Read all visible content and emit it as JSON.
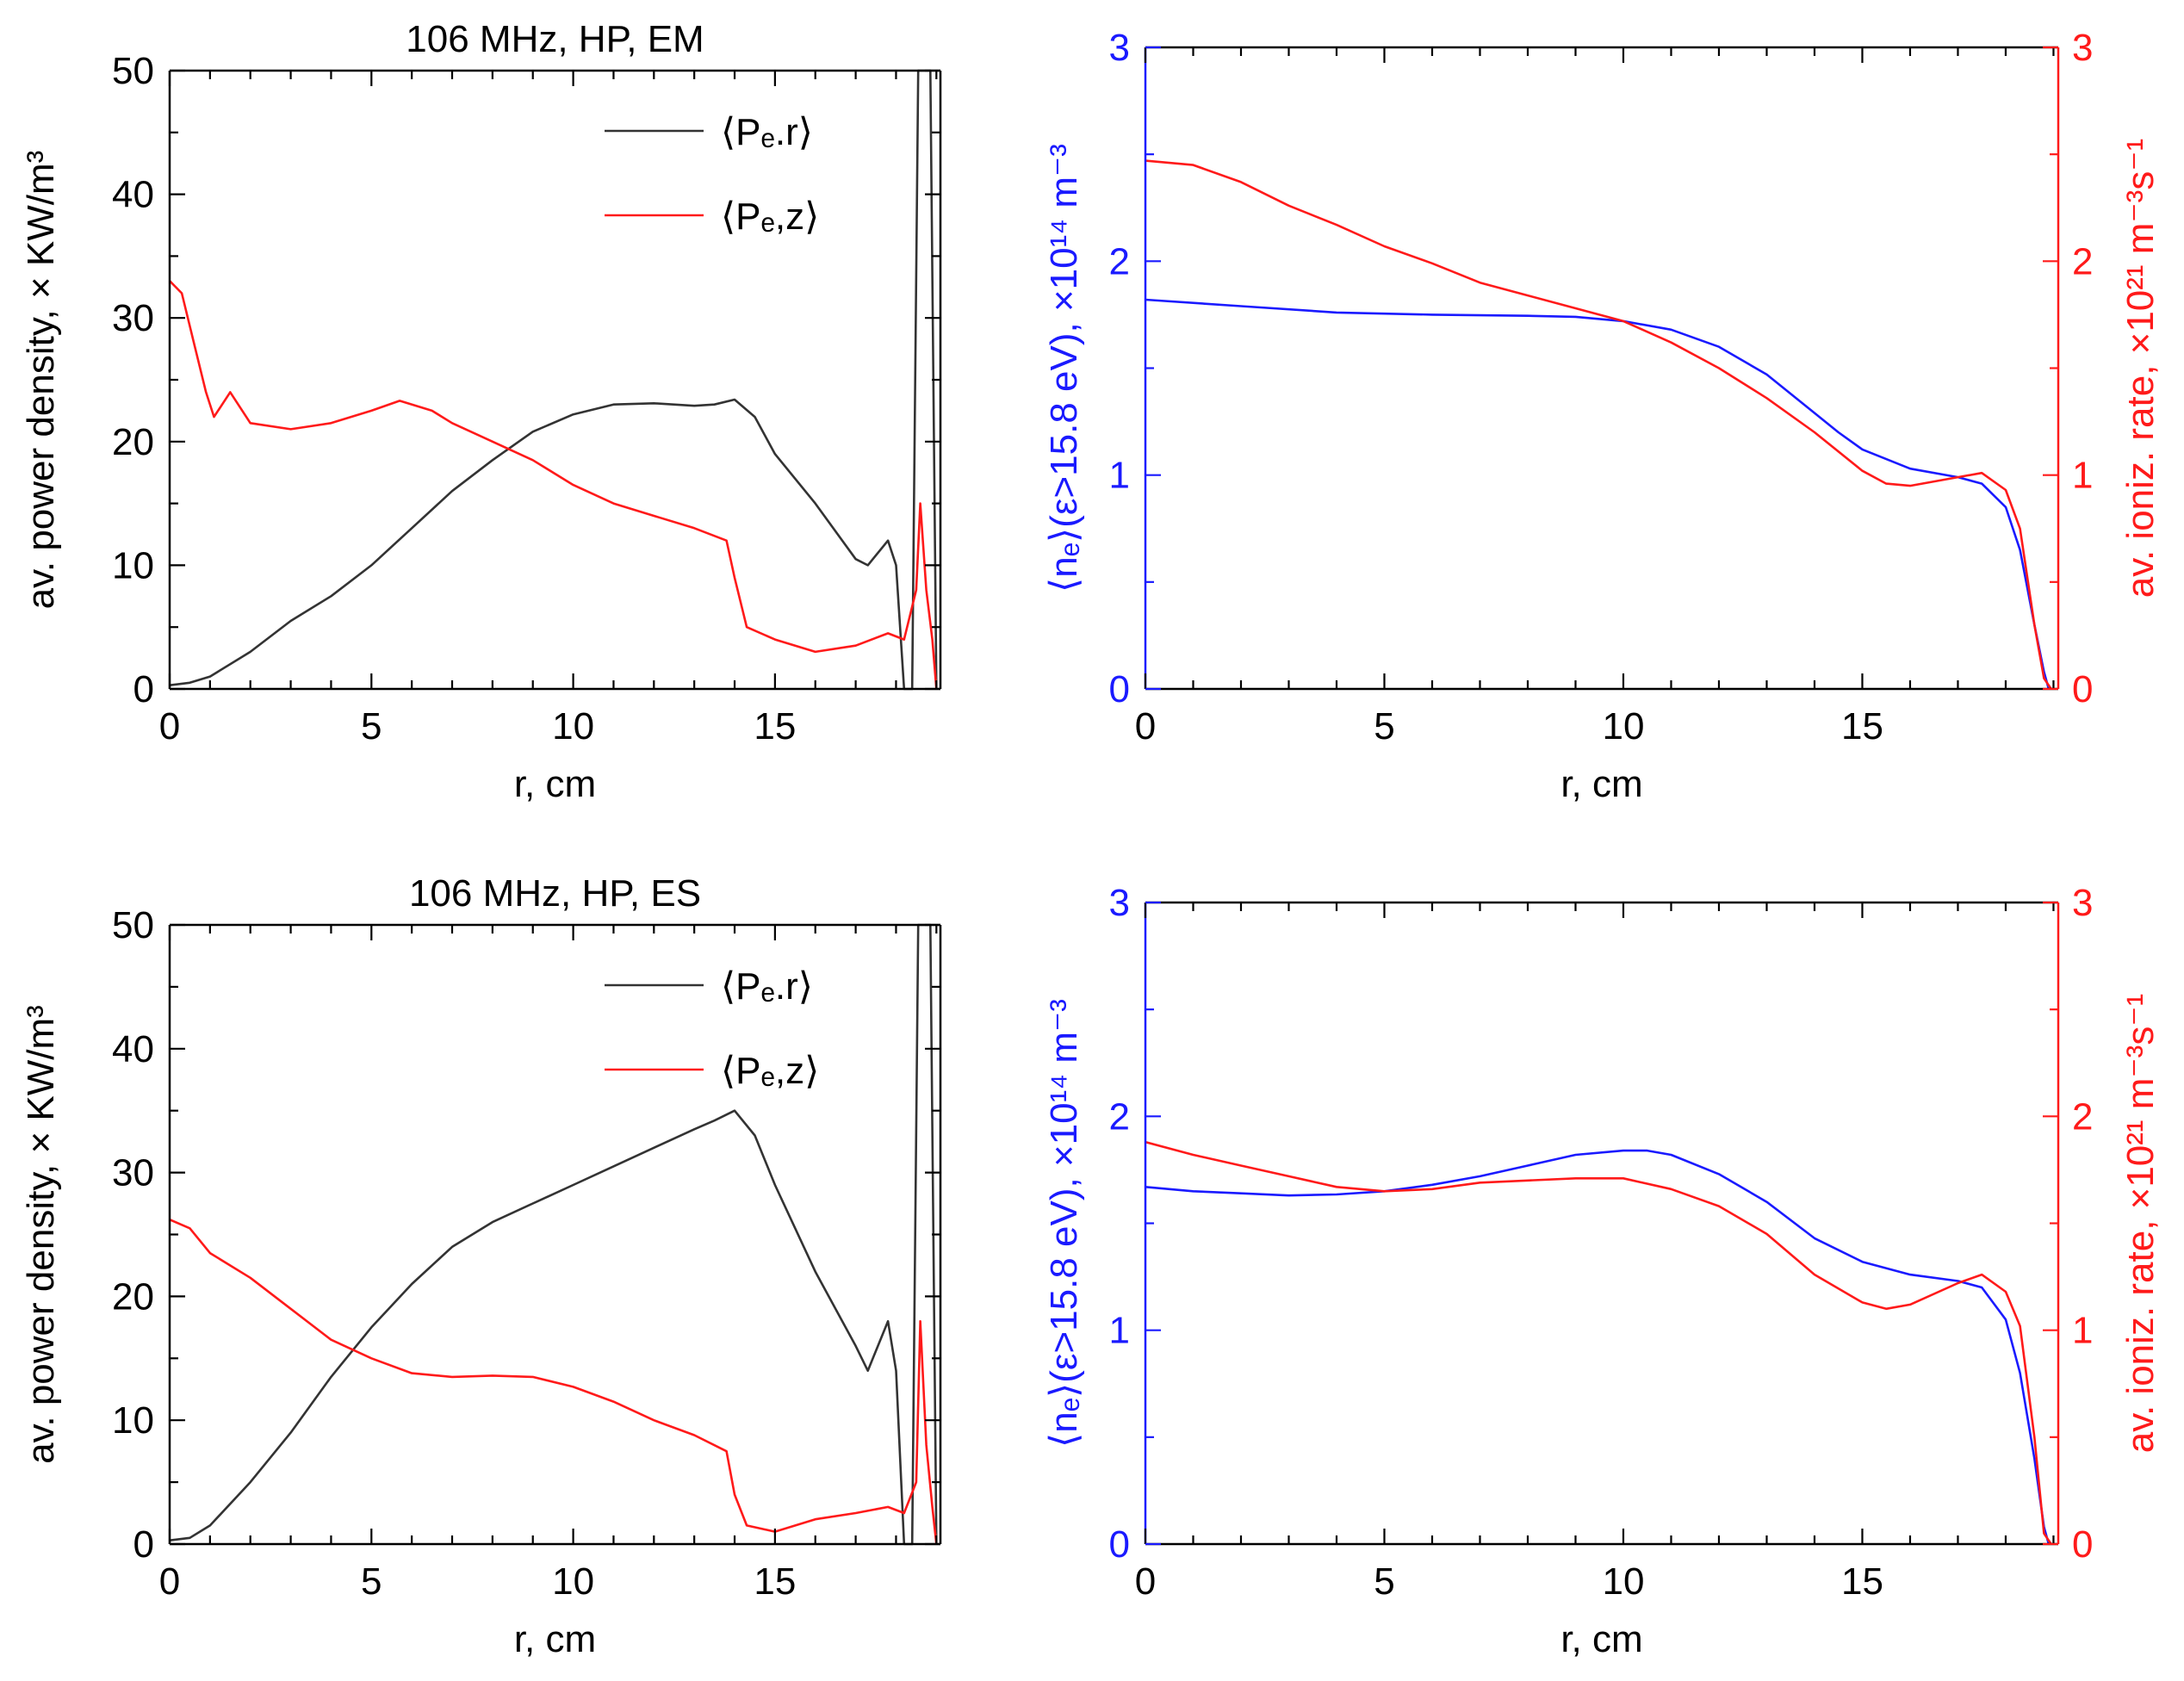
{
  "figure_colors": {
    "black": "#333333",
    "red": "#ff1a1a",
    "blue": "#1a1aff"
  },
  "chart_data": [
    {
      "type": "line",
      "panel": "top-left",
      "title": "106 MHz, HP, EM",
      "xlabel": "r, cm",
      "ylabel": "av. power density, × KW/m³",
      "xlim": [
        0,
        19.1
      ],
      "ylim": [
        0,
        50
      ],
      "xticks": [
        "0",
        "5",
        "10",
        "15"
      ],
      "yticks": [
        "0",
        "10",
        "20",
        "30",
        "40",
        "50"
      ],
      "legend": [
        "⟨Pₑ.r⟩",
        "⟨Pₑ,z⟩"
      ],
      "legend_position": "top-right",
      "series": [
        {
          "name": "⟨Pe.r⟩",
          "color": "#333333",
          "x": [
            0,
            0.5,
            1,
            2,
            3,
            4,
            5,
            6,
            7,
            8,
            9,
            10,
            11,
            12,
            13,
            13.5,
            14,
            14.5,
            15,
            16,
            17,
            17.3,
            17.8,
            18,
            18.2,
            18.4,
            18.55,
            18.7,
            18.85,
            19.0
          ],
          "y": [
            0.3,
            0.5,
            1,
            3,
            5.5,
            7.5,
            10,
            13,
            16,
            18.5,
            20.8,
            22.2,
            23,
            23.1,
            22.9,
            23,
            23.4,
            22,
            19,
            15,
            10.5,
            10,
            12,
            10,
            0,
            0,
            50,
            50,
            50,
            0
          ]
        },
        {
          "name": "⟨Pe,z⟩",
          "color": "#ff1a1a",
          "x": [
            0,
            0.3,
            0.6,
            0.9,
            1.1,
            1.5,
            2,
            3,
            4,
            5,
            5.7,
            6.5,
            7,
            8,
            9,
            10,
            11,
            12,
            13,
            13.8,
            14,
            14.3,
            15,
            16,
            17,
            17.8,
            18.2,
            18.5,
            18.6,
            18.75,
            18.9,
            19.0
          ],
          "y": [
            33,
            32,
            28,
            24,
            22,
            24,
            21.5,
            21,
            21.5,
            22.5,
            23.3,
            22.5,
            21.5,
            20,
            18.5,
            16.5,
            15,
            14,
            13,
            12,
            9,
            5,
            4,
            3,
            3.5,
            4.5,
            4,
            8,
            15,
            8,
            4,
            0
          ]
        }
      ]
    },
    {
      "type": "line",
      "panel": "top-right",
      "xlabel": "r, cm",
      "ylabel_left": "⟨nₑ⟩(ε>15.8 eV), ×10¹⁴ m⁻³",
      "ylabel_right": "av. ioniz. rate, ×10²¹ m⁻³s⁻¹",
      "xlim": [
        0,
        19.1
      ],
      "ylim_left": [
        0,
        3
      ],
      "ylim_right": [
        0,
        3
      ],
      "xticks": [
        "0",
        "5",
        "10",
        "15"
      ],
      "yticks_left": [
        "0",
        "1",
        "2",
        "3"
      ],
      "yticks_right": [
        "0",
        "1",
        "2",
        "3"
      ],
      "series": [
        {
          "name": "⟨ne⟩(ε>15.8 eV)",
          "axis": "left",
          "color": "#1a1aff",
          "x": [
            0,
            2,
            4,
            6,
            8,
            9,
            10,
            11,
            12,
            13,
            14,
            14.5,
            15,
            16,
            17,
            17.5,
            18,
            18.3,
            18.6,
            18.8,
            18.9
          ],
          "y": [
            1.82,
            1.79,
            1.76,
            1.75,
            1.745,
            1.74,
            1.72,
            1.68,
            1.6,
            1.47,
            1.29,
            1.2,
            1.12,
            1.03,
            0.99,
            0.96,
            0.85,
            0.65,
            0.3,
            0.08,
            0.0
          ]
        },
        {
          "name": "av. ioniz. rate",
          "axis": "right",
          "color": "#ff1a1a",
          "x": [
            0,
            1,
            2,
            3,
            4,
            5,
            6,
            7,
            8,
            9,
            10,
            11,
            12,
            13,
            14,
            15,
            15.5,
            16,
            17,
            17.5,
            18,
            18.3,
            18.6,
            18.8,
            18.95
          ],
          "y": [
            2.47,
            2.45,
            2.37,
            2.26,
            2.17,
            2.07,
            1.99,
            1.9,
            1.84,
            1.78,
            1.72,
            1.62,
            1.5,
            1.36,
            1.2,
            1.02,
            0.96,
            0.95,
            0.99,
            1.01,
            0.93,
            0.75,
            0.3,
            0.05,
            0.0
          ]
        }
      ]
    },
    {
      "type": "line",
      "panel": "bottom-left",
      "title": "106 MHz, HP, ES",
      "xlabel": "r, cm",
      "ylabel": "av. power density, × KW/m³",
      "xlim": [
        0,
        19.1
      ],
      "ylim": [
        0,
        50
      ],
      "xticks": [
        "0",
        "5",
        "10",
        "15"
      ],
      "yticks": [
        "0",
        "10",
        "20",
        "30",
        "40",
        "50"
      ],
      "legend": [
        "⟨Pₑ.r⟩",
        "⟨Pₑ,z⟩"
      ],
      "legend_position": "top-right",
      "series": [
        {
          "name": "⟨Pe.r⟩",
          "color": "#333333",
          "x": [
            0,
            0.5,
            1,
            2,
            3,
            4,
            5,
            6,
            7,
            8,
            9,
            10,
            11,
            12,
            13,
            13.5,
            14,
            14.5,
            15,
            16,
            17,
            17.3,
            17.8,
            18,
            18.2,
            18.4,
            18.55,
            18.7,
            18.85,
            19.0
          ],
          "y": [
            0.3,
            0.5,
            1.5,
            5,
            9,
            13.5,
            17.5,
            21,
            24,
            26,
            27.5,
            29,
            30.5,
            32,
            33.5,
            34.2,
            35,
            33,
            29,
            22,
            16,
            14,
            18,
            14,
            0,
            0,
            50,
            50,
            50,
            0
          ]
        },
        {
          "name": "⟨Pe,z⟩",
          "color": "#ff1a1a",
          "x": [
            0,
            0.5,
            1,
            2,
            3,
            4,
            5,
            6,
            7,
            8,
            9,
            10,
            11,
            12,
            13,
            13.8,
            14,
            14.3,
            15,
            16,
            17,
            17.8,
            18.2,
            18.5,
            18.6,
            18.75,
            18.9,
            19.0
          ],
          "y": [
            26.2,
            25.5,
            23.5,
            21.5,
            19,
            16.5,
            15,
            13.8,
            13.5,
            13.6,
            13.5,
            12.7,
            11.5,
            10,
            8.8,
            7.5,
            4,
            1.5,
            1,
            2,
            2.5,
            3,
            2.5,
            5,
            18,
            8,
            3,
            0
          ]
        }
      ]
    },
    {
      "type": "line",
      "panel": "bottom-right",
      "xlabel": "r, cm",
      "ylabel_left": "⟨nₑ⟩(ε>15.8 eV), ×10¹⁴ m⁻³",
      "ylabel_right": "av. ioniz. rate, ×10²¹ m⁻³s⁻¹",
      "xlim": [
        0,
        19.1
      ],
      "ylim_left": [
        0,
        3
      ],
      "ylim_right": [
        0,
        3
      ],
      "xticks": [
        "0",
        "5",
        "10",
        "15"
      ],
      "yticks_left": [
        "0",
        "1",
        "2",
        "3"
      ],
      "yticks_right": [
        "0",
        "1",
        "2",
        "3"
      ],
      "series": [
        {
          "name": "⟨ne⟩(ε>15.8 eV)",
          "axis": "left",
          "color": "#1a1aff",
          "x": [
            0,
            1,
            2,
            3,
            4,
            5,
            6,
            7,
            8,
            9,
            10,
            10.5,
            11,
            12,
            13,
            14,
            15,
            16,
            17,
            17.5,
            18,
            18.3,
            18.6,
            18.8,
            18.9
          ],
          "y": [
            1.67,
            1.65,
            1.64,
            1.63,
            1.635,
            1.65,
            1.68,
            1.72,
            1.77,
            1.82,
            1.84,
            1.84,
            1.82,
            1.73,
            1.6,
            1.43,
            1.32,
            1.26,
            1.23,
            1.2,
            1.05,
            0.8,
            0.4,
            0.08,
            0.0
          ]
        },
        {
          "name": "av. ioniz. rate",
          "axis": "right",
          "color": "#ff1a1a",
          "x": [
            0,
            1,
            2,
            3,
            4,
            5,
            6,
            7,
            8,
            9,
            10,
            11,
            12,
            13,
            14,
            15,
            15.5,
            16,
            17,
            17.5,
            18,
            18.3,
            18.6,
            18.8,
            18.95
          ],
          "y": [
            1.88,
            1.82,
            1.77,
            1.72,
            1.67,
            1.65,
            1.66,
            1.69,
            1.7,
            1.71,
            1.71,
            1.66,
            1.58,
            1.45,
            1.26,
            1.13,
            1.1,
            1.12,
            1.22,
            1.26,
            1.18,
            1.02,
            0.5,
            0.05,
            0.0
          ]
        }
      ]
    }
  ]
}
